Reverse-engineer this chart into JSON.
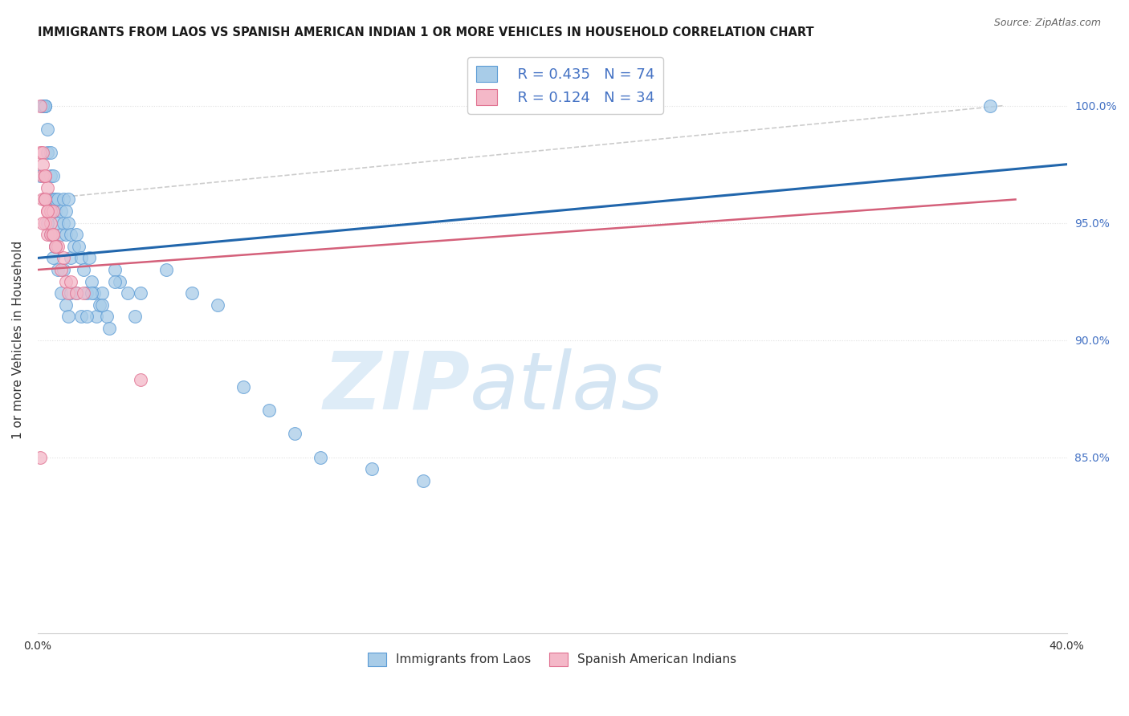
{
  "title": "IMMIGRANTS FROM LAOS VS SPANISH AMERICAN INDIAN 1 OR MORE VEHICLES IN HOUSEHOLD CORRELATION CHART",
  "source": "Source: ZipAtlas.com",
  "ylabel": "1 or more Vehicles in Household",
  "watermark_zip": "ZIP",
  "watermark_atlas": "atlas",
  "legend_blue_r": "R = 0.435",
  "legend_blue_n": "N = 74",
  "legend_pink_r": "R = 0.124",
  "legend_pink_n": "N = 34",
  "blue_color": "#a8cce8",
  "blue_edge_color": "#5b9bd5",
  "pink_color": "#f4b8c8",
  "pink_edge_color": "#e07090",
  "trend_blue_color": "#2166ac",
  "trend_pink_color": "#d4607a",
  "trend_dashed_color": "#cccccc",
  "blue_scatter_x": [
    0.37,
    0.001,
    0.002,
    0.003,
    0.003,
    0.004,
    0.004,
    0.005,
    0.005,
    0.005,
    0.006,
    0.006,
    0.007,
    0.007,
    0.008,
    0.008,
    0.009,
    0.009,
    0.01,
    0.01,
    0.011,
    0.011,
    0.012,
    0.012,
    0.013,
    0.013,
    0.014,
    0.015,
    0.016,
    0.017,
    0.018,
    0.019,
    0.02,
    0.021,
    0.022,
    0.023,
    0.024,
    0.025,
    0.027,
    0.028,
    0.03,
    0.032,
    0.035,
    0.038,
    0.04,
    0.003,
    0.004,
    0.005,
    0.006,
    0.007,
    0.008,
    0.009,
    0.01,
    0.011,
    0.012,
    0.013,
    0.015,
    0.017,
    0.019,
    0.021,
    0.025,
    0.03,
    0.05,
    0.06,
    0.07,
    0.08,
    0.09,
    0.1,
    0.11,
    0.13,
    0.15,
    0.002,
    0.002,
    0.003
  ],
  "blue_scatter_y": [
    1.0,
    0.97,
    1.0,
    1.0,
    1.0,
    0.99,
    0.98,
    0.98,
    0.97,
    0.96,
    0.97,
    0.96,
    0.96,
    0.955,
    0.96,
    0.95,
    0.955,
    0.945,
    0.96,
    0.95,
    0.955,
    0.945,
    0.96,
    0.95,
    0.945,
    0.935,
    0.94,
    0.945,
    0.94,
    0.935,
    0.93,
    0.92,
    0.935,
    0.925,
    0.92,
    0.91,
    0.915,
    0.92,
    0.91,
    0.905,
    0.93,
    0.925,
    0.92,
    0.91,
    0.92,
    0.96,
    0.95,
    0.945,
    0.935,
    0.94,
    0.93,
    0.92,
    0.93,
    0.915,
    0.91,
    0.92,
    0.92,
    0.91,
    0.91,
    0.92,
    0.915,
    0.925,
    0.93,
    0.92,
    0.915,
    0.88,
    0.87,
    0.86,
    0.85,
    0.845,
    0.84,
    1.0,
    1.0,
    1.0
  ],
  "pink_scatter_x": [
    0.001,
    0.001,
    0.002,
    0.002,
    0.002,
    0.003,
    0.003,
    0.003,
    0.004,
    0.004,
    0.004,
    0.005,
    0.005,
    0.006,
    0.006,
    0.007,
    0.008,
    0.009,
    0.01,
    0.011,
    0.012,
    0.013,
    0.015,
    0.018,
    0.003,
    0.004,
    0.005,
    0.006,
    0.007,
    0.002,
    0.002,
    0.003,
    0.04,
    0.001
  ],
  "pink_scatter_y": [
    1.0,
    0.98,
    0.97,
    0.96,
    0.98,
    0.97,
    0.96,
    0.95,
    0.965,
    0.955,
    0.945,
    0.955,
    0.945,
    0.955,
    0.945,
    0.94,
    0.94,
    0.93,
    0.935,
    0.925,
    0.92,
    0.925,
    0.92,
    0.92,
    0.96,
    0.955,
    0.95,
    0.945,
    0.94,
    0.975,
    0.95,
    0.97,
    0.883,
    0.85
  ],
  "xmin": 0.0,
  "xmax": 0.4,
  "ymin": 0.775,
  "ymax": 1.025,
  "ytick_vals": [
    0.85,
    0.9,
    0.95,
    1.0
  ],
  "ytick_labels": [
    "85.0%",
    "90.0%",
    "95.0%",
    "100.0%"
  ],
  "grid_color": "#e0e0e0",
  "title_fontsize": 10.5,
  "source_fontsize": 9,
  "axis_tick_fontsize": 10,
  "right_tick_color": "#4472c4"
}
